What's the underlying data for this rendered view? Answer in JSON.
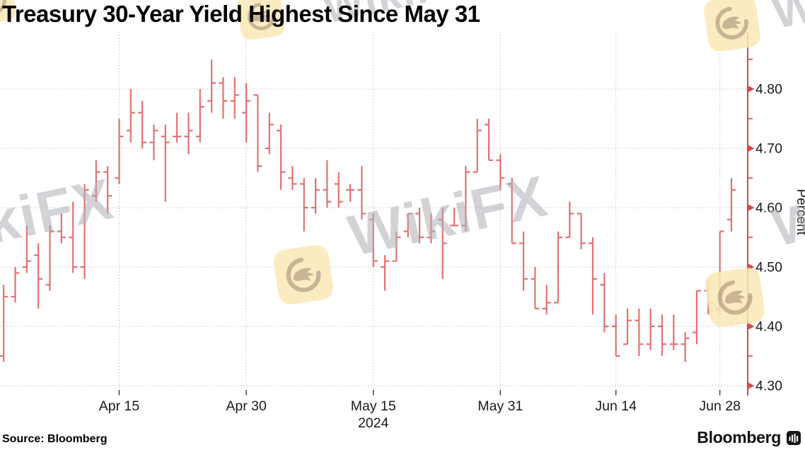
{
  "page": {
    "title": "Treasury 30-Year Yield Highest Since May 31",
    "source": "Source: Bloomberg",
    "brand": "Bloomberg",
    "watermark_text": "WikiFX"
  },
  "chart_data": {
    "type": "ohlc-bar",
    "title": "Treasury 30-Year Yield Highest Since May 31",
    "series_name": "Treasury 30-Year Yield",
    "ylabel": "Percent",
    "year_label": "2024",
    "ylim": [
      4.28,
      4.9
    ],
    "y_ticks_major": [
      4.8,
      4.7,
      4.6,
      4.5,
      4.4,
      4.3
    ],
    "y_ticks_minor": [
      4.85,
      4.75,
      4.65,
      4.55,
      4.45,
      4.35
    ],
    "grid": "dotted",
    "legend": "none",
    "colors": {
      "bars": "#dd5f5f",
      "axis": "#d84848",
      "grid": "#c6c2c2",
      "text": "#1a1a1a"
    },
    "x_tick_labels": [
      {
        "index": 10,
        "label": "Apr 15"
      },
      {
        "index": 21,
        "label": "Apr 30"
      },
      {
        "index": 32,
        "label": "May 15",
        "sublabel": "2024"
      },
      {
        "index": 43,
        "label": "May 31"
      },
      {
        "index": 53,
        "label": "Jun 14"
      },
      {
        "index": 62,
        "label": "Jun 28"
      }
    ],
    "bars": [
      {
        "date": "Apr 1",
        "o": 4.35,
        "h": 4.47,
        "l": 4.34,
        "c": 4.45
      },
      {
        "date": "Apr 2",
        "o": 4.45,
        "h": 4.5,
        "l": 4.44,
        "c": 4.49
      },
      {
        "date": "Apr 3",
        "o": 4.5,
        "h": 4.57,
        "l": 4.49,
        "c": 4.51
      },
      {
        "date": "Apr 4",
        "o": 4.52,
        "h": 4.54,
        "l": 4.43,
        "c": 4.48
      },
      {
        "date": "Apr 5",
        "o": 4.47,
        "h": 4.57,
        "l": 4.46,
        "c": 4.56
      },
      {
        "date": "Apr 8",
        "o": 4.56,
        "h": 4.59,
        "l": 4.54,
        "c": 4.55
      },
      {
        "date": "Apr 9",
        "o": 4.55,
        "h": 4.61,
        "l": 4.49,
        "c": 4.5
      },
      {
        "date": "Apr 10",
        "o": 4.5,
        "h": 4.64,
        "l": 4.48,
        "c": 4.63
      },
      {
        "date": "Apr 11",
        "o": 4.62,
        "h": 4.68,
        "l": 4.61,
        "c": 4.66
      },
      {
        "date": "Apr 12",
        "o": 4.66,
        "h": 4.67,
        "l": 4.59,
        "c": 4.62
      },
      {
        "date": "Apr 15",
        "o": 4.65,
        "h": 4.75,
        "l": 4.64,
        "c": 4.72
      },
      {
        "date": "Apr 16",
        "o": 4.73,
        "h": 4.8,
        "l": 4.71,
        "c": 4.76
      },
      {
        "date": "Apr 17",
        "o": 4.76,
        "h": 4.78,
        "l": 4.7,
        "c": 4.71
      },
      {
        "date": "Apr 18",
        "o": 4.71,
        "h": 4.74,
        "l": 4.68,
        "c": 4.73
      },
      {
        "date": "Apr 19",
        "o": 4.72,
        "h": 4.74,
        "l": 4.61,
        "c": 4.71
      },
      {
        "date": "Apr 22",
        "o": 4.72,
        "h": 4.76,
        "l": 4.71,
        "c": 4.72
      },
      {
        "date": "Apr 23",
        "o": 4.72,
        "h": 4.76,
        "l": 4.69,
        "c": 4.73
      },
      {
        "date": "Apr 24",
        "o": 4.72,
        "h": 4.8,
        "l": 4.71,
        "c": 4.77
      },
      {
        "date": "Apr 25",
        "o": 4.78,
        "h": 4.85,
        "l": 4.76,
        "c": 4.81
      },
      {
        "date": "Apr 26",
        "o": 4.81,
        "h": 4.82,
        "l": 4.75,
        "c": 4.78
      },
      {
        "date": "Apr 29",
        "o": 4.78,
        "h": 4.82,
        "l": 4.75,
        "c": 4.79
      },
      {
        "date": "Apr 30",
        "o": 4.76,
        "h": 4.81,
        "l": 4.71,
        "c": 4.78
      },
      {
        "date": "May 1",
        "o": 4.79,
        "h": 4.79,
        "l": 4.66,
        "c": 4.67
      },
      {
        "date": "May 2",
        "o": 4.7,
        "h": 4.76,
        "l": 4.69,
        "c": 4.74
      },
      {
        "date": "May 3",
        "o": 4.73,
        "h": 4.74,
        "l": 4.63,
        "c": 4.66
      },
      {
        "date": "May 6",
        "o": 4.65,
        "h": 4.67,
        "l": 4.63,
        "c": 4.64
      },
      {
        "date": "May 7",
        "o": 4.64,
        "h": 4.65,
        "l": 4.56,
        "c": 4.6
      },
      {
        "date": "May 8",
        "o": 4.6,
        "h": 4.65,
        "l": 4.59,
        "c": 4.63
      },
      {
        "date": "May 9",
        "o": 4.63,
        "h": 4.68,
        "l": 4.6,
        "c": 4.61
      },
      {
        "date": "May 10",
        "o": 4.64,
        "h": 4.66,
        "l": 4.6,
        "c": 4.61
      },
      {
        "date": "May 13",
        "o": 4.63,
        "h": 4.64,
        "l": 4.61,
        "c": 4.63
      },
      {
        "date": "May 14",
        "o": 4.63,
        "h": 4.67,
        "l": 4.58,
        "c": 4.59
      },
      {
        "date": "May 15",
        "o": 4.58,
        "h": 4.59,
        "l": 4.5,
        "c": 4.51
      },
      {
        "date": "May 16",
        "o": 4.5,
        "h": 4.52,
        "l": 4.46,
        "c": 4.51
      },
      {
        "date": "May 17",
        "o": 4.51,
        "h": 4.56,
        "l": 4.51,
        "c": 4.55
      },
      {
        "date": "May 20",
        "o": 4.56,
        "h": 4.59,
        "l": 4.55,
        "c": 4.59
      },
      {
        "date": "May 21",
        "o": 4.59,
        "h": 4.6,
        "l": 4.54,
        "c": 4.55
      },
      {
        "date": "May 22",
        "o": 4.55,
        "h": 4.59,
        "l": 4.54,
        "c": 4.56
      },
      {
        "date": "May 23",
        "o": 4.58,
        "h": 4.6,
        "l": 4.48,
        "c": 4.54
      },
      {
        "date": "May 24",
        "o": 4.57,
        "h": 4.6,
        "l": 4.57,
        "c": 4.57
      },
      {
        "date": "May 28",
        "o": 4.57,
        "h": 4.67,
        "l": 4.56,
        "c": 4.66
      },
      {
        "date": "May 29",
        "o": 4.66,
        "h": 4.75,
        "l": 4.66,
        "c": 4.73
      },
      {
        "date": "May 30",
        "o": 4.74,
        "h": 4.75,
        "l": 4.68,
        "c": 4.68
      },
      {
        "date": "May 31",
        "o": 4.68,
        "h": 4.69,
        "l": 4.63,
        "c": 4.65
      },
      {
        "date": "Jun 3",
        "o": 4.64,
        "h": 4.65,
        "l": 4.54,
        "c": 4.54
      },
      {
        "date": "Jun 4",
        "o": 4.54,
        "h": 4.56,
        "l": 4.46,
        "c": 4.48
      },
      {
        "date": "Jun 5",
        "o": 4.48,
        "h": 4.5,
        "l": 4.43,
        "c": 4.43
      },
      {
        "date": "Jun 6",
        "o": 4.43,
        "h": 4.47,
        "l": 4.42,
        "c": 4.44
      },
      {
        "date": "Jun 7",
        "o": 4.44,
        "h": 4.56,
        "l": 4.44,
        "c": 4.55
      },
      {
        "date": "Jun 10",
        "o": 4.55,
        "h": 4.61,
        "l": 4.55,
        "c": 4.59
      },
      {
        "date": "Jun 11",
        "o": 4.59,
        "h": 4.59,
        "l": 4.53,
        "c": 4.54
      },
      {
        "date": "Jun 12",
        "o": 4.54,
        "h": 4.55,
        "l": 4.42,
        "c": 4.48
      },
      {
        "date": "Jun 13",
        "o": 4.47,
        "h": 4.49,
        "l": 4.39,
        "c": 4.4
      },
      {
        "date": "Jun 14",
        "o": 4.4,
        "h": 4.42,
        "l": 4.35,
        "c": 4.35
      },
      {
        "date": "Jun 17",
        "o": 4.37,
        "h": 4.43,
        "l": 4.37,
        "c": 4.41
      },
      {
        "date": "Jun 18",
        "o": 4.41,
        "h": 4.43,
        "l": 4.35,
        "c": 4.37
      },
      {
        "date": "Jun 20",
        "o": 4.37,
        "h": 4.43,
        "l": 4.36,
        "c": 4.4
      },
      {
        "date": "Jun 21",
        "o": 4.4,
        "h": 4.42,
        "l": 4.35,
        "c": 4.37
      },
      {
        "date": "Jun 24",
        "o": 4.37,
        "h": 4.42,
        "l": 4.36,
        "c": 4.37
      },
      {
        "date": "Jun 25",
        "o": 4.37,
        "h": 4.39,
        "l": 4.34,
        "c": 4.38
      },
      {
        "date": "Jun 26",
        "o": 4.39,
        "h": 4.46,
        "l": 4.37,
        "c": 4.46
      },
      {
        "date": "Jun 27",
        "o": 4.46,
        "h": 4.48,
        "l": 4.42,
        "c": 4.44
      },
      {
        "date": "Jun 28",
        "o": 4.43,
        "h": 4.56,
        "l": 4.42,
        "c": 4.56
      },
      {
        "date": "Jul 1",
        "o": 4.58,
        "h": 4.65,
        "l": 4.56,
        "c": 4.63
      }
    ]
  }
}
